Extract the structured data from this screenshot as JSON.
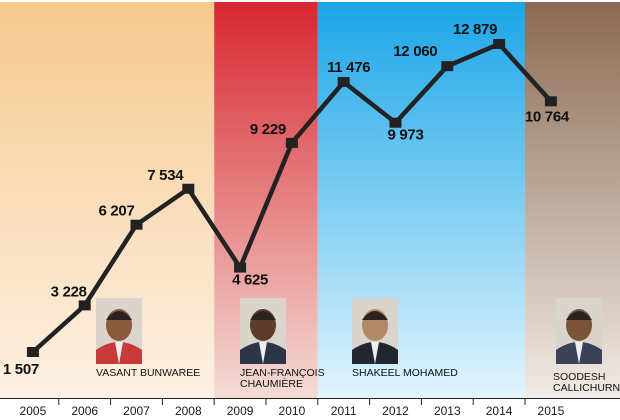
{
  "chart_data": {
    "type": "line",
    "x": [
      "2005",
      "2006",
      "2007",
      "2008",
      "2009",
      "2010",
      "2011",
      "2012",
      "2013",
      "2014",
      "2015"
    ],
    "values": [
      1507,
      3228,
      6207,
      7534,
      4625,
      9229,
      11476,
      9973,
      12060,
      12879,
      10764
    ],
    "value_labels": [
      "1 507",
      "3 228",
      "6 207",
      "7 534",
      "4 625",
      "9 229",
      "11 476",
      "9 973",
      "12 060",
      "12 879",
      "10 764"
    ],
    "title": "",
    "xlabel": "",
    "ylabel": "",
    "grid": false,
    "line_color": "#222222",
    "periods": [
      {
        "start": "2005",
        "end": "2008",
        "minister_lines": [
          "VASANT BUNWAREE"
        ],
        "gradient_top": "#f6c98e",
        "gradient_bottom": "#fdf1e4"
      },
      {
        "start": "2009",
        "end": "2010",
        "minister_lines": [
          "JEAN-FRANÇOIS",
          "CHAUMIÈRE"
        ],
        "gradient_top": "#d8262f",
        "gradient_bottom": "#f4dcd5"
      },
      {
        "start": "2011",
        "end": "2014",
        "minister_lines": [
          "SHAKEEL MOHAMED"
        ],
        "gradient_top": "#1aa5e8",
        "gradient_bottom": "#e2f5fd"
      },
      {
        "start": "2015",
        "end": "2015",
        "minister_lines": [
          "SOODESH",
          "CALLICHURN"
        ],
        "gradient_top": "#8a6a52",
        "gradient_bottom": "#f1ebe6"
      }
    ]
  }
}
